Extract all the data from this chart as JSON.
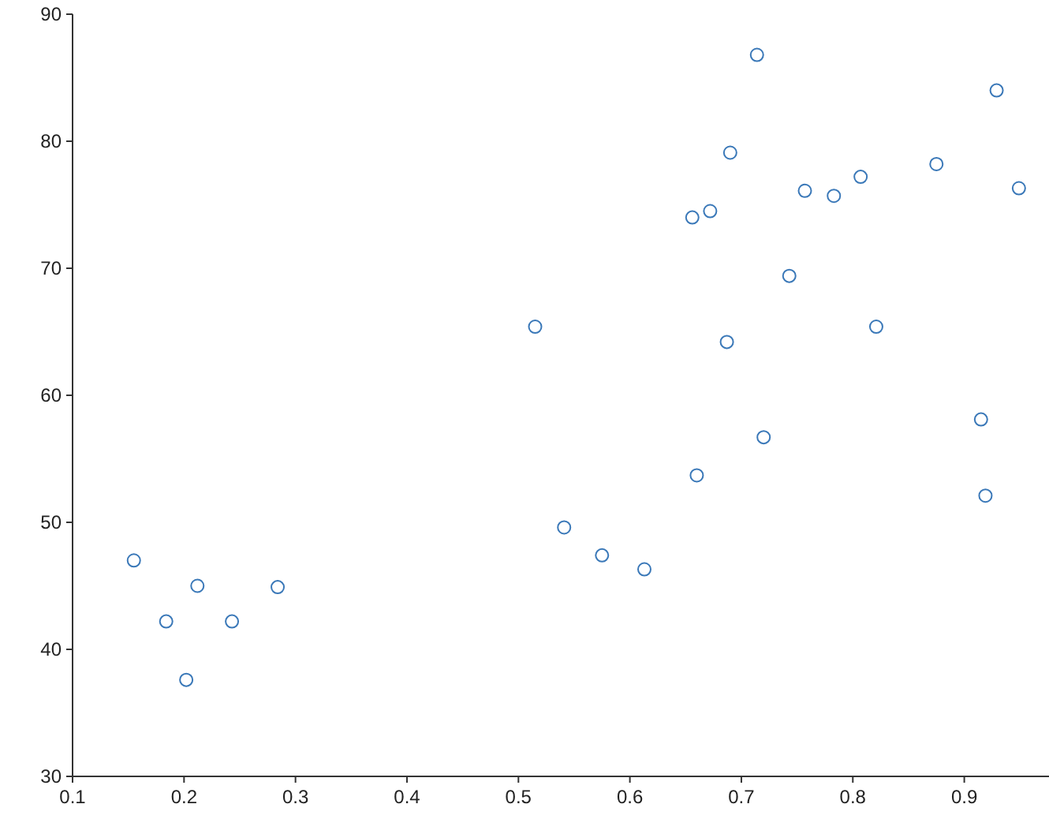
{
  "chart_data": {
    "type": "scatter",
    "x": [
      0.155,
      0.184,
      0.212,
      0.202,
      0.243,
      0.284,
      0.515,
      0.541,
      0.575,
      0.613,
      0.656,
      0.672,
      0.66,
      0.69,
      0.687,
      0.714,
      0.72,
      0.743,
      0.757,
      0.783,
      0.807,
      0.821,
      0.875,
      0.929,
      0.949,
      0.915,
      0.919
    ],
    "series": [
      {
        "color": "#3a78b8",
        "values": [
          47.0,
          42.2,
          45.0,
          37.6,
          42.2,
          44.9,
          65.4,
          49.6,
          47.4,
          46.3,
          74.0,
          74.5,
          53.7,
          79.1,
          64.2,
          86.8,
          56.7,
          69.4,
          76.1,
          75.7,
          77.2,
          65.4,
          78.2,
          84.0,
          76.3,
          58.1,
          52.1
        ]
      }
    ],
    "xlim": [
      0.1,
      0.976
    ],
    "xticks": [
      {
        "value": 0.1,
        "label": "0.1"
      },
      {
        "value": 0.2,
        "label": "0.2"
      },
      {
        "value": 0.3,
        "label": "0.3"
      },
      {
        "value": 0.4,
        "label": "0.4"
      },
      {
        "value": 0.5,
        "label": "0.5"
      },
      {
        "value": 0.6,
        "label": "0.6"
      },
      {
        "value": 0.7,
        "label": "0.7"
      },
      {
        "value": 0.8,
        "label": "0.8"
      },
      {
        "value": 0.9,
        "label": "0.9"
      }
    ],
    "ylim": [
      30,
      90
    ],
    "yticks": [
      30,
      40,
      50,
      60,
      70,
      80,
      90
    ],
    "marker": "circle"
  }
}
